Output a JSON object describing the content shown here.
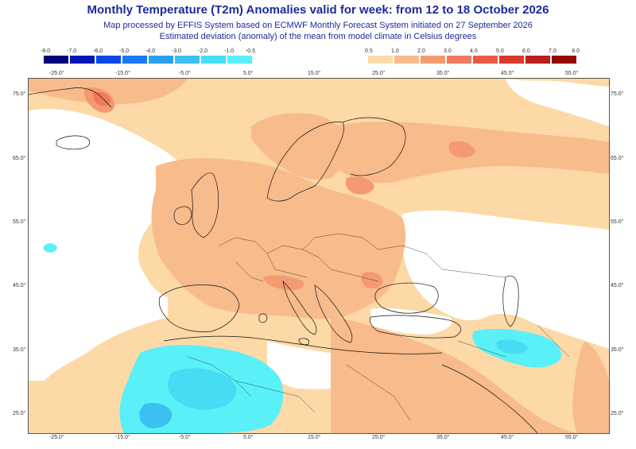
{
  "title": "Monthly Temperature (T2m) Anomalies valid for week: from 12 to 18 October 2026",
  "subtitle_1": "Map processed by EFFIS System based on ECMWF Monthly Forecast System initiated on 27 September 2026",
  "subtitle_2": "Estimated deviation (anomaly) of the mean from model climate in Celsius degrees",
  "legend_cold": {
    "labels": [
      "-8.0",
      "-7.0",
      "-6.0",
      "-5.0",
      "-4.0",
      "-3.0",
      "-2.0",
      "-1.0",
      "-0.5"
    ],
    "colors": [
      "#02007a",
      "#0018b8",
      "#0a48e8",
      "#1a78f2",
      "#2c9ef2",
      "#3cc0f2",
      "#46dcf4",
      "#5af0f8"
    ]
  },
  "legend_warm": {
    "labels": [
      "0.5",
      "1.0",
      "2.0",
      "3.0",
      "4.0",
      "5.0",
      "6.0",
      "7.0",
      "8.0"
    ],
    "colors": [
      "#fcd9a6",
      "#f8bb8c",
      "#f49a72",
      "#ef7a5c",
      "#e85a48",
      "#d83a32",
      "#bd1e1e",
      "#950808"
    ]
  },
  "longitude_labels": [
    "-25.0°",
    "-15.0°",
    "-5.0°",
    "5.0°",
    "15.0°",
    "25.0°",
    "35.0°",
    "45.0°",
    "55.0°"
  ],
  "latitude_labels": [
    "75.0°",
    "65.0°",
    "55.0°",
    "45.0°",
    "35.0°",
    "25.0°"
  ],
  "colors": {
    "title": "#1c2a9c",
    "warm_light": "#fcd9a6",
    "warm_mid": "#f8bb8c",
    "warm_strong": "#f49a72",
    "cold_light": "#5af0f8",
    "cold_mid": "#46dcf4",
    "coast": "#111111"
  }
}
